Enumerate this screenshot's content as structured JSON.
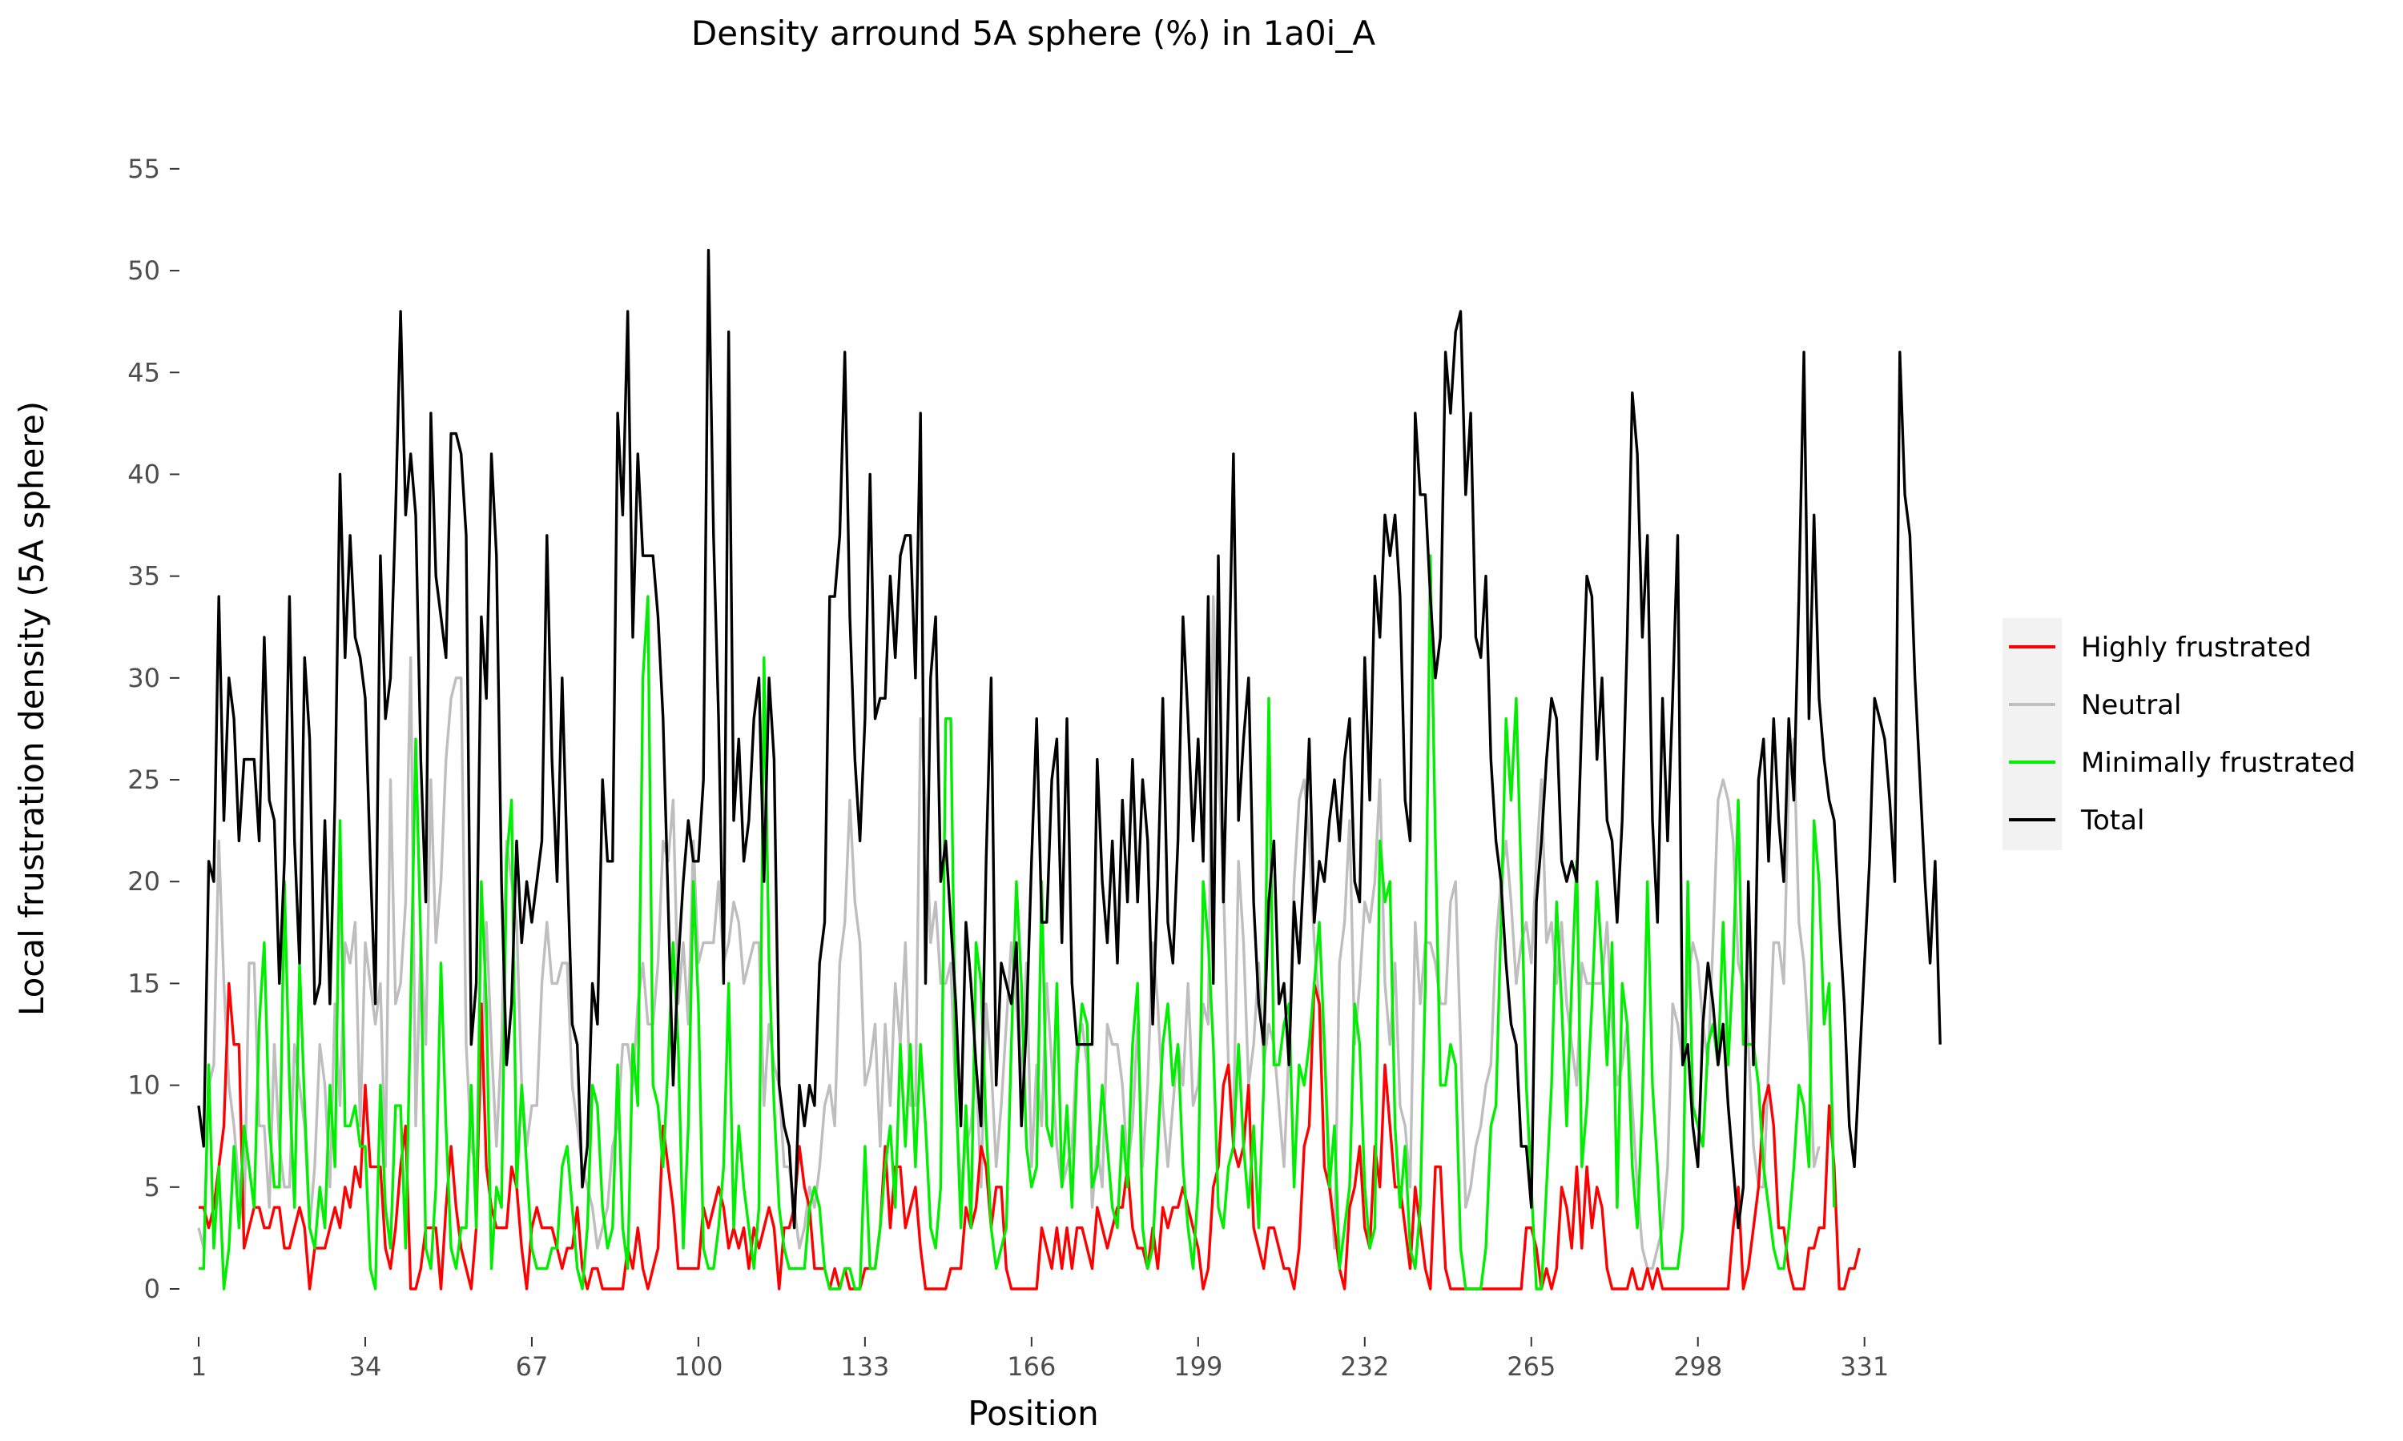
{
  "chart_data": {
    "type": "line",
    "title": "Density arround 5A sphere (%) in 1a0i_A",
    "xlabel": "Position",
    "ylabel": "Local frustration density (5A sphere)",
    "x_ticks": [
      1,
      34,
      67,
      100,
      133,
      166,
      199,
      232,
      265,
      298,
      331
    ],
    "y_ticks": [
      0,
      5,
      10,
      15,
      20,
      25,
      30,
      35,
      40,
      45,
      50,
      55
    ],
    "xlim": [
      1,
      332
    ],
    "ylim": [
      0,
      57
    ],
    "grid": false,
    "legend_position": "right",
    "series": [
      {
        "name": "Highly frustrated",
        "color": "#ff0000",
        "values": [
          4,
          4,
          3,
          4,
          6,
          8,
          15,
          12,
          12,
          2,
          3,
          4,
          4,
          3,
          3,
          4,
          4,
          2,
          2,
          3,
          4,
          3,
          0,
          2,
          2,
          2,
          3,
          4,
          3,
          5,
          4,
          6,
          5,
          10,
          6,
          6,
          6,
          2,
          1,
          3,
          6,
          8,
          0,
          0,
          1,
          3,
          3,
          3,
          0,
          4,
          7,
          4,
          2,
          1,
          0,
          3,
          14,
          6,
          4,
          3,
          3,
          3,
          6,
          5,
          2,
          0,
          3,
          4,
          3,
          3,
          3,
          2,
          1,
          2,
          2,
          4,
          1,
          0,
          1,
          1,
          0,
          0,
          0,
          0,
          0,
          2,
          1,
          3,
          1,
          0,
          1,
          2,
          8,
          6,
          4,
          1,
          1,
          1,
          1,
          1,
          4,
          3,
          4,
          5,
          4,
          2,
          3,
          2,
          3,
          1,
          3,
          2,
          3,
          4,
          3,
          0,
          3,
          3,
          4,
          7,
          5,
          4,
          1,
          1,
          1,
          0,
          1,
          0,
          1,
          0,
          0,
          0,
          1,
          1,
          1,
          3,
          7,
          3,
          6,
          6,
          3,
          4,
          5,
          2,
          0,
          0,
          0,
          0,
          0,
          1,
          1,
          1,
          4,
          3,
          4,
          7,
          6,
          3,
          5,
          5,
          1,
          0,
          0,
          0,
          0,
          0,
          0,
          3,
          2,
          1,
          3,
          1,
          3,
          1,
          3,
          3,
          2,
          1,
          4,
          3,
          2,
          3,
          4,
          4,
          6,
          3,
          2,
          2,
          1,
          3,
          1,
          4,
          3,
          4,
          4,
          5,
          4,
          3,
          2,
          0,
          1,
          5,
          6,
          10,
          11,
          7,
          6,
          7,
          10,
          3,
          2,
          1,
          3,
          3,
          2,
          1,
          1,
          0,
          2,
          7,
          8,
          15,
          14,
          6,
          5,
          3,
          1,
          0,
          4,
          5,
          7,
          3,
          2,
          7,
          5,
          11,
          8,
          5,
          5,
          3,
          1,
          5,
          3,
          1,
          0,
          6,
          6,
          1,
          0,
          0,
          0,
          0,
          0,
          0,
          0,
          0,
          0,
          0,
          0,
          0,
          0,
          0,
          0,
          3,
          3,
          2,
          0,
          1,
          0,
          1,
          5,
          4,
          2,
          6,
          2,
          6,
          3,
          5,
          4,
          1,
          0,
          0,
          0,
          0,
          1,
          0,
          0,
          1,
          0,
          1,
          0,
          0,
          0,
          0,
          0,
          0,
          0,
          0,
          0,
          0,
          0,
          0,
          0,
          0,
          3,
          5,
          0,
          1,
          3,
          5,
          9,
          10,
          8,
          3,
          3,
          1,
          0,
          0,
          0,
          2,
          2,
          3,
          3,
          9,
          6,
          0,
          0,
          1,
          1,
          2
        ]
      },
      {
        "name": "Neutral",
        "color": "#bebebe",
        "values": [
          3,
          2,
          10,
          11,
          22,
          15,
          10,
          8,
          5,
          3,
          16,
          16,
          8,
          8,
          4,
          12,
          7,
          5,
          5,
          12,
          10,
          8,
          3,
          6,
          12,
          10,
          5,
          14,
          9,
          17,
          16,
          18,
          8,
          17,
          15,
          13,
          15,
          6,
          25,
          14,
          15,
          19,
          31,
          8,
          17,
          12,
          25,
          17,
          20,
          26,
          29,
          30,
          30,
          12,
          7,
          6,
          10,
          18,
          12,
          7,
          12,
          22,
          20,
          18,
          10,
          7,
          9,
          9,
          15,
          18,
          15,
          15,
          16,
          16,
          10,
          8,
          6,
          5,
          4,
          2,
          3,
          4,
          7,
          8,
          12,
          12,
          10,
          14,
          16,
          13,
          13,
          16,
          22,
          21,
          24,
          14,
          17,
          13,
          22,
          16,
          17,
          17,
          17,
          20,
          16,
          17,
          19,
          18,
          15,
          16,
          17,
          17,
          9,
          13,
          11,
          10,
          6,
          6,
          4,
          2,
          3,
          5,
          4,
          6,
          9,
          10,
          8,
          16,
          18,
          24,
          19,
          17,
          10,
          11,
          13,
          7,
          13,
          9,
          15,
          12,
          17,
          9,
          9,
          28,
          24,
          17,
          19,
          15,
          15,
          16,
          9,
          5,
          7,
          8,
          11,
          5,
          14,
          11,
          6,
          9,
          13,
          17,
          14,
          10,
          16,
          6,
          11,
          8,
          15,
          11,
          7,
          5,
          6,
          7,
          12,
          13,
          11,
          4,
          7,
          5,
          13,
          12,
          12,
          10,
          6,
          8,
          13,
          6,
          10,
          17,
          14,
          9,
          6,
          9,
          12,
          10,
          15,
          9,
          10,
          14,
          13,
          34,
          26,
          20,
          11,
          8,
          21,
          17,
          10,
          12,
          16,
          11,
          13,
          12,
          9,
          6,
          12,
          20,
          24,
          25,
          22,
          17,
          14,
          12,
          6,
          2,
          16,
          18,
          23,
          12,
          15,
          19,
          18,
          20,
          25,
          15,
          12,
          16,
          9,
          8,
          5,
          18,
          14,
          17,
          17,
          16,
          14,
          14,
          19,
          20,
          12,
          4,
          5,
          7,
          8,
          10,
          11,
          17,
          20,
          22,
          19,
          15,
          17,
          18,
          16,
          21,
          25,
          17,
          18,
          15,
          18,
          14,
          12,
          10,
          16,
          15,
          15,
          15,
          15,
          18,
          13,
          10,
          11,
          13,
          9,
          5,
          2,
          1,
          1,
          2,
          3,
          6,
          14,
          13,
          11,
          15,
          17,
          16,
          13,
          11,
          17,
          24,
          25,
          24,
          22,
          16,
          15,
          12,
          7,
          5,
          5,
          11,
          17,
          17,
          15,
          25,
          27,
          18,
          16,
          12,
          6,
          7
        ]
      },
      {
        "name": "Minimally frustrated",
        "color": "#00ee00",
        "values": [
          1,
          1,
          11,
          2,
          6,
          0,
          2,
          7,
          3,
          8,
          6,
          4,
          13,
          17,
          8,
          5,
          5,
          20,
          10,
          4,
          16,
          9,
          3,
          2,
          5,
          3,
          10,
          6,
          23,
          8,
          8,
          9,
          7,
          7,
          1,
          0,
          10,
          4,
          2,
          9,
          9,
          2,
          14,
          27,
          17,
          2,
          1,
          5,
          16,
          8,
          2,
          1,
          3,
          3,
          10,
          3,
          20,
          14,
          1,
          5,
          4,
          21,
          24,
          5,
          10,
          6,
          2,
          1,
          1,
          1,
          2,
          2,
          6,
          7,
          4,
          1,
          0,
          3,
          10,
          9,
          4,
          2,
          3,
          11,
          3,
          1,
          12,
          9,
          30,
          34,
          10,
          9,
          6,
          11,
          17,
          12,
          2,
          8,
          20,
          14,
          2,
          1,
          1,
          3,
          6,
          15,
          3,
          8,
          5,
          3,
          1,
          4,
          31,
          16,
          9,
          4,
          2,
          1,
          1,
          1,
          1,
          4,
          5,
          4,
          1,
          0,
          0,
          0,
          1,
          1,
          0,
          0,
          7,
          1,
          1,
          3,
          6,
          8,
          4,
          12,
          7,
          12,
          6,
          12,
          8,
          3,
          2,
          5,
          28,
          28,
          10,
          3,
          9,
          3,
          17,
          15,
          8,
          3,
          1,
          2,
          3,
          12,
          20,
          15,
          7,
          5,
          6,
          20,
          8,
          7,
          15,
          5,
          9,
          4,
          11,
          14,
          13,
          5,
          6,
          10,
          7,
          4,
          3,
          8,
          5,
          12,
          15,
          3,
          1,
          2,
          7,
          12,
          14,
          10,
          12,
          6,
          3,
          1,
          5,
          20,
          17,
          12,
          4,
          3,
          6,
          7,
          12,
          7,
          4,
          8,
          3,
          10,
          29,
          11,
          11,
          13,
          14,
          5,
          11,
          10,
          12,
          15,
          18,
          12,
          5,
          8,
          1,
          3,
          5,
          14,
          12,
          5,
          2,
          3,
          22,
          19,
          20,
          8,
          4,
          7,
          2,
          1,
          4,
          15,
          36,
          22,
          10,
          10,
          12,
          11,
          2,
          0,
          0,
          0,
          0,
          2,
          8,
          9,
          18,
          28,
          24,
          29,
          20,
          10,
          5,
          0,
          0,
          5,
          10,
          19,
          14,
          8,
          15,
          21,
          6,
          9,
          14,
          20,
          16,
          11,
          17,
          4,
          15,
          13,
          6,
          3,
          9,
          20,
          10,
          6,
          1,
          1,
          1,
          1,
          3,
          20,
          9,
          8,
          7,
          12,
          13,
          11,
          18,
          11,
          16,
          24,
          12,
          12,
          12,
          10,
          6,
          4,
          2,
          1,
          1,
          3,
          6,
          10,
          9,
          6,
          23,
          20,
          13,
          15,
          4
        ]
      },
      {
        "name": "Total",
        "color": "#000000",
        "values": [
          9,
          7,
          21,
          20,
          34,
          23,
          30,
          28,
          22,
          26,
          26,
          26,
          22,
          32,
          24,
          23,
          15,
          21,
          34,
          22,
          16,
          31,
          27,
          14,
          15,
          23,
          14,
          24,
          40,
          31,
          37,
          32,
          31,
          29,
          21,
          14,
          36,
          28,
          30,
          38,
          48,
          38,
          41,
          38,
          26,
          19,
          43,
          35,
          33,
          31,
          42,
          42,
          41,
          37,
          12,
          15,
          33,
          29,
          41,
          36,
          20,
          11,
          14,
          22,
          17,
          20,
          18,
          20,
          22,
          37,
          26,
          20,
          30,
          21,
          13,
          12,
          5,
          7,
          15,
          13,
          25,
          21,
          21,
          43,
          38,
          48,
          32,
          41,
          36,
          36,
          36,
          33,
          28,
          19,
          10,
          16,
          20,
          23,
          21,
          21,
          25,
          51,
          37,
          28,
          15,
          47,
          23,
          27,
          21,
          23,
          28,
          30,
          20,
          30,
          26,
          10,
          8,
          7,
          3,
          10,
          8,
          10,
          9,
          16,
          18,
          34,
          34,
          37,
          46,
          33,
          26,
          22,
          28,
          40,
          28,
          29,
          29,
          35,
          31,
          36,
          37,
          37,
          30,
          43,
          15,
          30,
          33,
          20,
          22,
          18,
          14,
          8,
          18,
          15,
          11,
          8,
          21,
          30,
          10,
          16,
          15,
          14,
          17,
          8,
          13,
          21,
          28,
          18,
          18,
          25,
          27,
          17,
          28,
          15,
          12,
          12,
          12,
          12,
          26,
          20,
          17,
          22,
          16,
          24,
          19,
          26,
          19,
          25,
          22,
          13,
          20,
          29,
          18,
          16,
          22,
          33,
          28,
          22,
          27,
          21,
          34,
          15,
          36,
          19,
          29,
          41,
          23,
          27,
          30,
          19,
          14,
          12,
          19,
          22,
          14,
          15,
          11,
          19,
          16,
          21,
          27,
          18,
          21,
          20,
          23,
          25,
          22,
          26,
          28,
          20,
          19,
          31,
          24,
          35,
          32,
          38,
          36,
          38,
          34,
          24,
          22,
          43,
          39,
          39,
          34,
          30,
          32,
          46,
          43,
          47,
          48,
          39,
          43,
          32,
          31,
          35,
          26,
          22,
          20,
          16,
          13,
          12,
          7,
          7,
          4,
          19,
          22,
          26,
          29,
          28,
          21,
          20,
          21,
          20,
          28,
          35,
          34,
          26,
          30,
          23,
          22,
          18,
          23,
          32,
          44,
          41,
          32,
          37,
          23,
          18,
          29,
          22,
          29,
          37,
          11,
          12,
          8,
          6,
          13,
          16,
          14,
          11,
          13,
          9,
          6,
          3,
          5,
          20,
          11,
          25,
          27,
          21,
          28,
          23,
          20,
          28,
          24,
          34,
          46,
          28,
          38,
          29,
          26,
          24,
          23,
          18,
          14,
          8,
          6,
          11,
          16,
          21,
          29,
          28,
          27,
          24,
          20,
          46,
          39,
          37,
          30,
          25,
          20,
          16,
          21,
          12
        ]
      }
    ]
  }
}
